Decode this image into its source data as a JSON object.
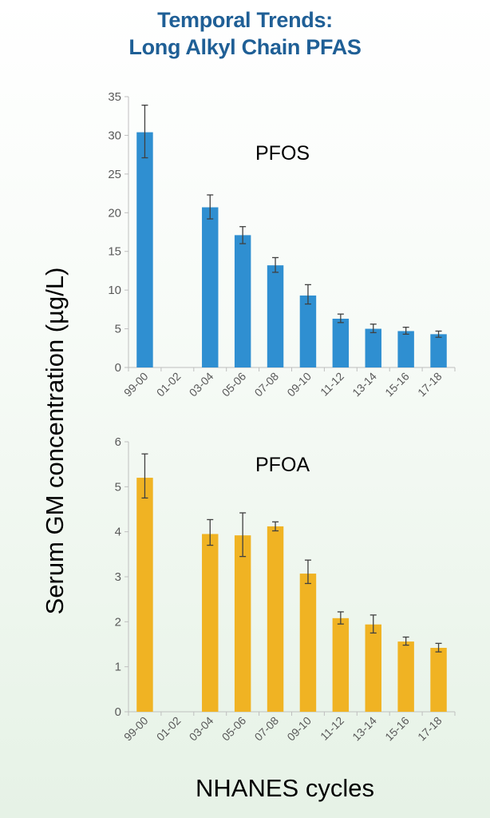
{
  "title": {
    "line1": "Temporal Trends:",
    "line2": "Long Alkyl Chain PFAS"
  },
  "shared": {
    "ylabel": "Serum GM  concentration (µg/L)",
    "xlabel": "NHANES cycles"
  },
  "chart_data": [
    {
      "type": "bar",
      "label": "PFOS",
      "color": "#2f8fd1",
      "categories": [
        "99-00",
        "01-02",
        "03-04",
        "05-06",
        "07-08",
        "09-10",
        "11-12",
        "13-14",
        "15-16",
        "17-18"
      ],
      "values": [
        30.4,
        null,
        20.7,
        17.1,
        13.2,
        9.3,
        6.3,
        5.0,
        4.7,
        4.3
      ],
      "error_low": [
        27.1,
        null,
        19.2,
        16.0,
        12.3,
        8.2,
        5.8,
        4.5,
        4.3,
        3.9
      ],
      "error_high": [
        33.9,
        null,
        22.3,
        18.2,
        14.2,
        10.7,
        6.9,
        5.6,
        5.2,
        4.7
      ],
      "ylim": [
        0,
        35
      ],
      "yticks": [
        "0",
        "5",
        "10",
        "15",
        "20",
        "25",
        "30",
        "35"
      ],
      "grid": false
    },
    {
      "type": "bar",
      "label": "PFOA",
      "color": "#f0b323",
      "categories": [
        "99-00",
        "01-02",
        "03-04",
        "05-06",
        "07-08",
        "09-10",
        "11-12",
        "13-14",
        "15-16",
        "17-18"
      ],
      "values": [
        5.2,
        null,
        3.95,
        3.92,
        4.12,
        3.07,
        2.08,
        1.94,
        1.56,
        1.42
      ],
      "error_low": [
        4.75,
        null,
        3.7,
        3.45,
        4.02,
        2.85,
        1.95,
        1.75,
        1.48,
        1.33
      ],
      "error_high": [
        5.73,
        null,
        4.27,
        4.42,
        4.22,
        3.37,
        2.22,
        2.15,
        1.66,
        1.52
      ],
      "ylim": [
        0,
        6
      ],
      "yticks": [
        "0",
        "1",
        "2",
        "3",
        "4",
        "5",
        "6"
      ],
      "grid": false
    }
  ]
}
